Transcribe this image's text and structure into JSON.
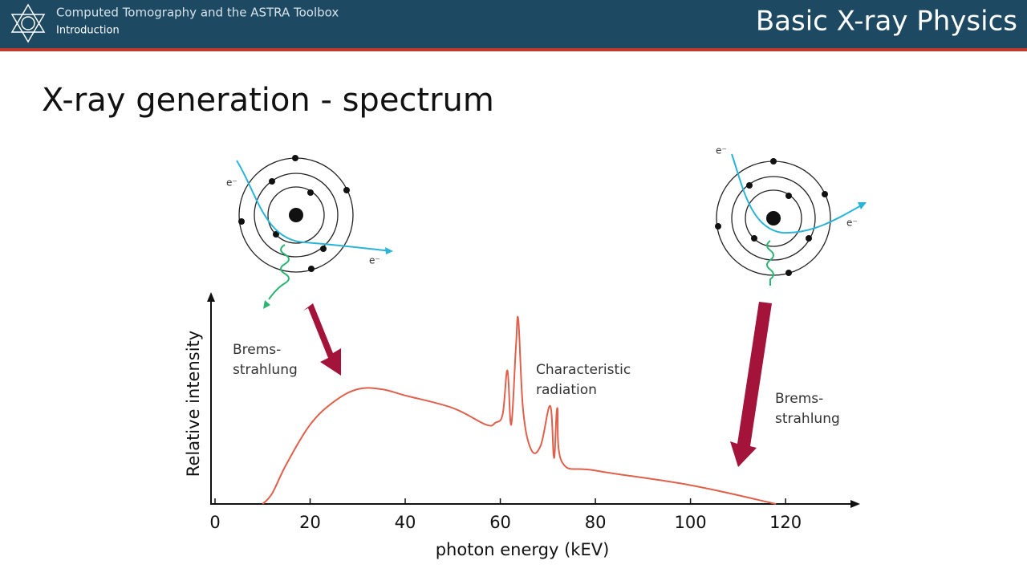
{
  "header": {
    "course": "Computed Tomography and the ASTRA Toolbox",
    "section": "Introduction",
    "topic": "Basic X-ray Physics"
  },
  "slide_title": "X-ray generation - spectrum",
  "diagram": {
    "left_atom": {
      "incoming": "e⁻",
      "outgoing": "e⁻"
    },
    "right_atom": {
      "incoming": "e⁻",
      "outgoing": "e⁻"
    }
  },
  "chart_data": {
    "type": "line",
    "xlabel": "photon energy (kEV)",
    "ylabel": "Relative intensity",
    "x": [
      10,
      12,
      15,
      20,
      25,
      30,
      35,
      40,
      50,
      57,
      59,
      60.5,
      61.5,
      62.3,
      63.3,
      63.8,
      64.8,
      66.5,
      68.5,
      70.5,
      71.3,
      72,
      73,
      80,
      100,
      118
    ],
    "values": [
      0,
      0.05,
      0.19,
      0.38,
      0.49,
      0.55,
      0.55,
      0.52,
      0.46,
      0.38,
      0.39,
      0.43,
      0.64,
      0.38,
      0.76,
      0.88,
      0.45,
      0.26,
      0.28,
      0.47,
      0.22,
      0.46,
      0.2,
      0.16,
      0.09,
      0
    ],
    "color": "#e0604c",
    "xlim": [
      0,
      135
    ],
    "ylim": [
      0,
      1
    ],
    "xticks": [
      0,
      20,
      40,
      60,
      80,
      100,
      120
    ],
    "annotations": [
      {
        "lines": [
          "Brems-",
          "strahlung"
        ]
      },
      {
        "lines": [
          "Characteristic",
          "radiation"
        ]
      },
      {
        "lines": [
          "Brems-",
          "strahlung"
        ]
      }
    ]
  }
}
